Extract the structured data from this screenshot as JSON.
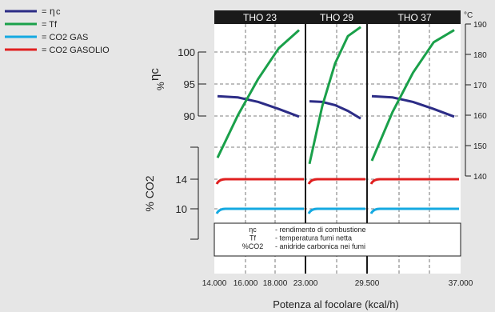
{
  "chart_data": {
    "type": "line",
    "legend": [
      {
        "key": "eta",
        "symbol": "η",
        "text": "=  c",
        "color": "#2c2c86"
      },
      {
        "key": "tf",
        "text": "= Tf",
        "color": "#1aa04a"
      },
      {
        "key": "co2gas",
        "text": "= CO2 GAS",
        "color": "#14a9e1"
      },
      {
        "key": "co2gasolio",
        "text": "= CO2 GASOLIO",
        "color": "#e02020"
      }
    ],
    "panels": [
      {
        "label": "THO 23",
        "x_start": 14000,
        "x_end": 23000,
        "x_ticks": [
          "14.000",
          "16.000",
          "18.000",
          "23.000"
        ]
      },
      {
        "label": "THO 29",
        "x_start": 23000,
        "x_end": 29500,
        "x_ticks": [
          "29.500"
        ]
      },
      {
        "label": "THO 37",
        "x_start": 29500,
        "x_end": 37000,
        "x_ticks": [
          "37.000"
        ]
      }
    ],
    "xlabel": "Potenza al focolare (kcal/h)",
    "eta_axis": {
      "label": "ηc\n%",
      "ticks": [
        "100",
        "95",
        "90"
      ],
      "range": [
        90,
        100
      ]
    },
    "co2_axis": {
      "label": "% CO2",
      "ticks": [
        "14",
        "10"
      ]
    },
    "temp_axis": {
      "unit": "°C",
      "ticks": [
        "190",
        "180",
        "170",
        "160",
        "150",
        "140"
      ],
      "range": [
        140,
        190
      ]
    },
    "series": {
      "eta": [
        [
          [
            0.0,
            93.1
          ],
          [
            0.25,
            92.9
          ],
          [
            0.5,
            92.2
          ],
          [
            0.75,
            91.1
          ],
          [
            1.0,
            89.9
          ]
        ],
        [
          [
            0.0,
            92.3
          ],
          [
            0.25,
            92.2
          ],
          [
            0.5,
            91.7
          ],
          [
            0.75,
            90.8
          ],
          [
            1.0,
            89.6
          ]
        ],
        [
          [
            0.0,
            93.1
          ],
          [
            0.25,
            92.9
          ],
          [
            0.5,
            92.2
          ],
          [
            0.75,
            91.1
          ],
          [
            1.0,
            89.9
          ]
        ]
      ],
      "tf": [
        [
          [
            0.0,
            146
          ],
          [
            0.25,
            160
          ],
          [
            0.5,
            172
          ],
          [
            0.75,
            182
          ],
          [
            1.0,
            188
          ]
        ],
        [
          [
            0.0,
            144
          ],
          [
            0.25,
            163
          ],
          [
            0.5,
            177
          ],
          [
            0.75,
            186
          ],
          [
            1.0,
            189
          ]
        ],
        [
          [
            0.0,
            145
          ],
          [
            0.25,
            161
          ],
          [
            0.5,
            174
          ],
          [
            0.75,
            184
          ],
          [
            1.0,
            188
          ]
        ]
      ],
      "co2gas": {
        "value": 10
      },
      "co2gasolio": {
        "value": 14
      }
    },
    "notes": [
      {
        "symbol": "ηc",
        "text": "- rendimento di combustione"
      },
      {
        "symbol": "Tf",
        "text": "- temperatura fumi netta"
      },
      {
        "symbol": "%CO2",
        "text": "- anidride carbonica nei fumi"
      }
    ]
  }
}
